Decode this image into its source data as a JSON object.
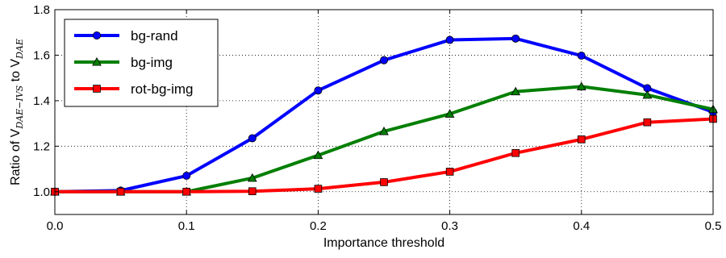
{
  "chart_data": {
    "type": "line",
    "x": [
      0.0,
      0.05,
      0.1,
      0.15,
      0.2,
      0.25,
      0.3,
      0.35,
      0.4,
      0.45,
      0.5
    ],
    "xlim": [
      0.0,
      0.5
    ],
    "ylim": [
      0.9,
      1.8
    ],
    "xticks": [
      "0.0",
      "0.1",
      "0.2",
      "0.3",
      "0.4",
      "0.5"
    ],
    "yticks": [
      "1.0",
      "1.2",
      "1.4",
      "1.6",
      "1.8"
    ],
    "xlabel": "Importance threshold",
    "ylabel": {
      "prefix": "Ratio of V",
      "sub1": "DAE−IVS",
      "middle": " to V",
      "sub2": "DAE"
    },
    "grid": true,
    "legend_position": "top-left",
    "series": [
      {
        "name": "bg-rand",
        "color": "#0000ff",
        "marker": "circle",
        "values": [
          1.0,
          1.005,
          1.07,
          1.235,
          1.445,
          1.578,
          1.667,
          1.673,
          1.598,
          1.455,
          1.35
        ]
      },
      {
        "name": "bg-img",
        "color": "#007f00",
        "marker": "triangle",
        "values": [
          1.0,
          1.0,
          1.0,
          1.06,
          1.16,
          1.265,
          1.342,
          1.44,
          1.462,
          1.425,
          1.362
        ]
      },
      {
        "name": "rot-bg-img",
        "color": "#ff0000",
        "marker": "square",
        "values": [
          1.0,
          1.0,
          1.0,
          1.002,
          1.013,
          1.042,
          1.088,
          1.17,
          1.23,
          1.305,
          1.32
        ]
      }
    ]
  }
}
